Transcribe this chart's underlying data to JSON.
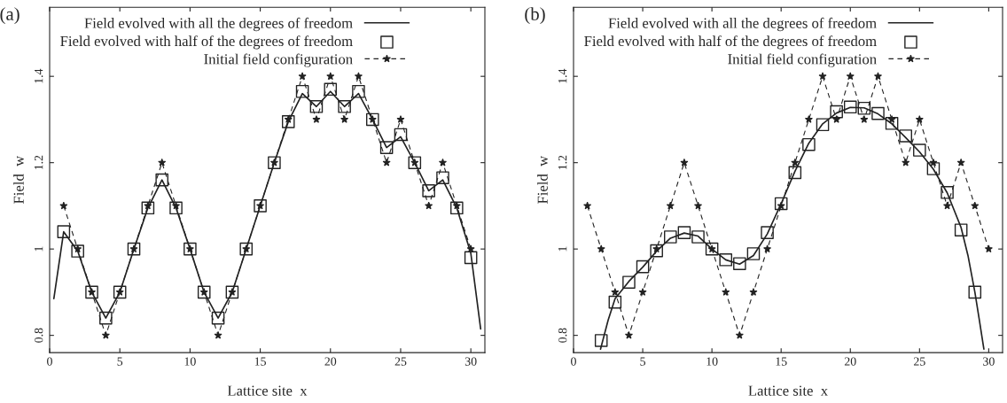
{
  "chart_data": [
    {
      "type": "line",
      "title": "(a)",
      "xlabel": "Lattice site  x",
      "ylabel": "Field  w",
      "xlim": [
        0,
        31
      ],
      "ylim": [
        0.76,
        1.56
      ],
      "xticks": [
        0,
        5,
        10,
        15,
        20,
        25,
        30
      ],
      "yticks": [
        0.8,
        1,
        1.2,
        1.4
      ],
      "grid": false,
      "legend": "top left",
      "series": [
        {
          "name": "Field evolved with all the degrees of freedom",
          "color": "#222222",
          "line_style": "solid",
          "marker": "none",
          "x": [
            0.3,
            1,
            2,
            3,
            4,
            5,
            6,
            7,
            8,
            9,
            10,
            11,
            12,
            13,
            14,
            15,
            16,
            17,
            18,
            19,
            20,
            21,
            22,
            23,
            24,
            25,
            26,
            27,
            28,
            29,
            30,
            30.7
          ],
          "values": [
            0.885,
            1.04,
            0.995,
            0.9,
            0.84,
            0.9,
            1.0,
            1.095,
            1.16,
            1.095,
            1.0,
            0.9,
            0.84,
            0.9,
            1.0,
            1.1,
            1.2,
            1.295,
            1.36,
            1.33,
            1.365,
            1.33,
            1.36,
            1.3,
            1.235,
            1.26,
            1.2,
            1.135,
            1.16,
            1.095,
            0.99,
            0.815
          ]
        },
        {
          "name": "Field evolved with half of the degrees of freedom",
          "type": "scatter",
          "color": "#222222",
          "marker": "square",
          "x": [
            1,
            2,
            3,
            4,
            5,
            6,
            7,
            8,
            9,
            10,
            11,
            12,
            13,
            14,
            15,
            16,
            17,
            18,
            19,
            20,
            21,
            22,
            23,
            24,
            25,
            26,
            27,
            28,
            29,
            30
          ],
          "values": [
            1.04,
            0.995,
            0.9,
            0.84,
            0.9,
            1.0,
            1.095,
            1.16,
            1.095,
            1.0,
            0.9,
            0.84,
            0.9,
            1.0,
            1.1,
            1.2,
            1.295,
            1.365,
            1.33,
            1.37,
            1.33,
            1.365,
            1.3,
            1.235,
            1.265,
            1.2,
            1.135,
            1.165,
            1.095,
            0.98
          ]
        },
        {
          "name": "Initial field configuration",
          "type": "line",
          "color": "#222222",
          "line_style": "dashed",
          "marker": "star",
          "x": [
            1,
            2,
            3,
            4,
            5,
            6,
            7,
            8,
            9,
            10,
            11,
            12,
            13,
            14,
            15,
            16,
            17,
            18,
            19,
            20,
            21,
            22,
            23,
            24,
            25,
            26,
            27,
            28,
            29,
            30
          ],
          "values": [
            1.1,
            1.0,
            0.9,
            0.8,
            0.9,
            1.0,
            1.1,
            1.2,
            1.1,
            1.0,
            0.9,
            0.8,
            0.9,
            1.0,
            1.1,
            1.2,
            1.3,
            1.4,
            1.3,
            1.4,
            1.3,
            1.4,
            1.3,
            1.2,
            1.3,
            1.2,
            1.1,
            1.2,
            1.1,
            1.0
          ]
        }
      ]
    },
    {
      "type": "line",
      "title": "(b)",
      "xlabel": "Lattice site  x",
      "ylabel": "Field  w",
      "xlim": [
        0,
        31
      ],
      "ylim": [
        0.76,
        1.56
      ],
      "xticks": [
        0,
        5,
        10,
        15,
        20,
        25,
        30
      ],
      "yticks": [
        0.8,
        1,
        1.2,
        1.4
      ],
      "grid": false,
      "legend": "top left",
      "series": [
        {
          "name": "Field evolved with all the degrees of freedom",
          "color": "#222222",
          "line_style": "solid",
          "marker": "none",
          "x": [
            1.95,
            2.5,
            3,
            4,
            5,
            6,
            7,
            8,
            9,
            10,
            11,
            12,
            13,
            14,
            15,
            16,
            17,
            18,
            19,
            20,
            21,
            22,
            23,
            24,
            25,
            26,
            27,
            28,
            28.5,
            29,
            29.3,
            29.65
          ],
          "values": [
            0.768,
            0.835,
            0.885,
            0.925,
            0.958,
            0.995,
            1.025,
            1.037,
            1.03,
            1.0,
            0.975,
            0.965,
            0.985,
            1.035,
            1.105,
            1.18,
            1.245,
            1.29,
            1.315,
            1.328,
            1.327,
            1.313,
            1.29,
            1.258,
            1.225,
            1.185,
            1.13,
            1.05,
            0.985,
            0.9,
            0.84,
            0.768
          ]
        },
        {
          "name": "Field evolved with half of the degrees of freedom",
          "type": "scatter",
          "color": "#222222",
          "marker": "square",
          "x": [
            2,
            3,
            4,
            5,
            6,
            7,
            8,
            9,
            10,
            11,
            12,
            13,
            14,
            15,
            16,
            17,
            18,
            19,
            20,
            21,
            22,
            23,
            24,
            25,
            26,
            27,
            28,
            29
          ],
          "values": [
            0.788,
            0.877,
            0.923,
            0.959,
            0.996,
            1.028,
            1.038,
            1.028,
            1.0,
            0.975,
            0.966,
            0.989,
            1.038,
            1.105,
            1.177,
            1.242,
            1.288,
            1.318,
            1.329,
            1.326,
            1.314,
            1.291,
            1.262,
            1.229,
            1.186,
            1.131,
            1.044,
            0.9
          ]
        },
        {
          "name": "Initial field configuration",
          "type": "line",
          "color": "#222222",
          "line_style": "dashed",
          "marker": "star",
          "x": [
            1,
            2,
            3,
            4,
            5,
            6,
            7,
            8,
            9,
            10,
            11,
            12,
            13,
            14,
            15,
            16,
            17,
            18,
            19,
            20,
            21,
            22,
            23,
            24,
            25,
            26,
            27,
            28,
            29,
            30
          ],
          "values": [
            1.1,
            1.0,
            0.9,
            0.8,
            0.9,
            1.0,
            1.1,
            1.2,
            1.1,
            1.0,
            0.9,
            0.8,
            0.9,
            1.0,
            1.1,
            1.2,
            1.3,
            1.4,
            1.3,
            1.4,
            1.3,
            1.4,
            1.3,
            1.2,
            1.3,
            1.2,
            1.1,
            1.2,
            1.1,
            1.0
          ]
        }
      ]
    }
  ]
}
